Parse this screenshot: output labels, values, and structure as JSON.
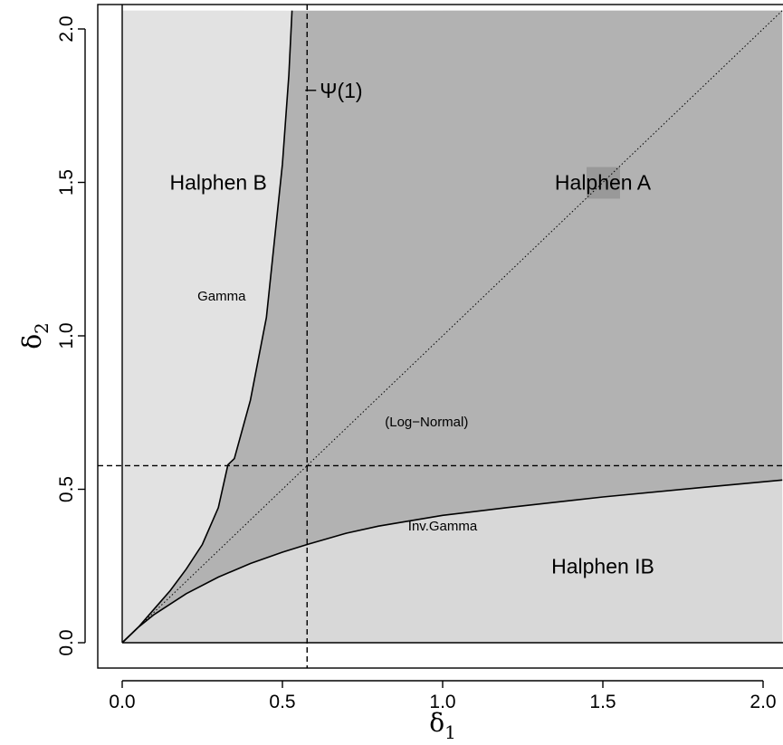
{
  "chart_data": {
    "type": "area",
    "title": "",
    "xlabel": "δ",
    "xlabel_sub": "1",
    "ylabel": "δ",
    "ylabel_sub": "2",
    "xlim": [
      0,
      2.06
    ],
    "ylim": [
      0,
      2.06
    ],
    "grid": false,
    "x_ticks": [
      0.0,
      0.5,
      1.0,
      1.5,
      2.0
    ],
    "x_tick_labels": [
      "0.0",
      "0.5",
      "1.0",
      "1.5",
      "2.0"
    ],
    "y_ticks": [
      0.0,
      0.5,
      1.0,
      1.5,
      2.0
    ],
    "y_tick_labels": [
      "0.0",
      "0.5",
      "1.0",
      "1.5",
      "2.0"
    ],
    "reference_value": 0.577,
    "reference_label": "Ψ(1)",
    "regions": [
      {
        "name": "Halphen B",
        "label": "Halphen B",
        "x": 0.3,
        "y": 1.5,
        "color": "#e2e2e2"
      },
      {
        "name": "Halphen A",
        "label": "Halphen A",
        "x": 1.5,
        "y": 1.5,
        "color": "#b2b2b2"
      },
      {
        "name": "Halphen IB",
        "label": "Halphen IB",
        "x": 1.5,
        "y": 0.25,
        "color": "#d8d8d8"
      }
    ],
    "curves": [
      {
        "name": "Gamma",
        "label": "Gamma",
        "label_x": 0.31,
        "label_y": 1.13,
        "x": [
          0,
          0.05,
          0.1,
          0.15,
          0.2,
          0.25,
          0.3,
          0.33,
          0.35,
          0.4,
          0.45,
          0.5,
          0.52,
          0.53
        ],
        "y": [
          0,
          0.05,
          0.11,
          0.17,
          0.24,
          0.32,
          0.44,
          0.58,
          0.6,
          0.79,
          1.06,
          1.56,
          1.85,
          2.06
        ]
      },
      {
        "name": "Inv.Gamma",
        "label": "Inv.Gamma",
        "label_x": 1.0,
        "label_y": 0.38,
        "x": [
          0,
          0.05,
          0.1,
          0.2,
          0.3,
          0.4,
          0.5,
          0.577,
          0.7,
          0.8,
          1.0,
          1.2,
          1.5,
          1.8,
          2.06
        ],
        "y": [
          0,
          0.05,
          0.092,
          0.16,
          0.214,
          0.258,
          0.295,
          0.32,
          0.357,
          0.38,
          0.415,
          0.44,
          0.475,
          0.505,
          0.53
        ]
      },
      {
        "name": "Log-Normal",
        "label": "(Log−Normal)",
        "label_x": 0.95,
        "label_y": 0.72,
        "x": [
          0,
          2.06
        ],
        "y": [
          0,
          2.06
        ]
      }
    ]
  }
}
